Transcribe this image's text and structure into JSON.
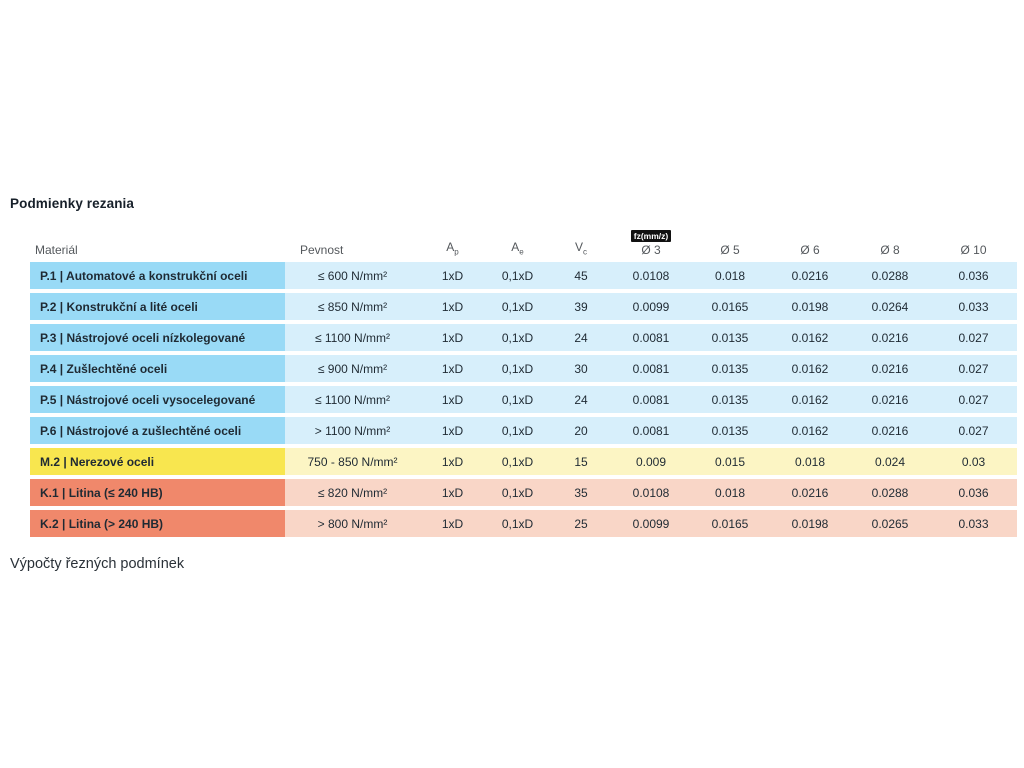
{
  "title": "Podmienky rezania",
  "footer_text": "Výpočty řezných podmínek",
  "table": {
    "fz_badge": "fz(mm/z)",
    "columns": [
      {
        "label": "Materiál"
      },
      {
        "label": "Pevnost"
      },
      {
        "label": "A",
        "sub": "p"
      },
      {
        "label": "A",
        "sub": "e"
      },
      {
        "label": "V",
        "sub": "c"
      },
      {
        "label": "Ø 3"
      },
      {
        "label": "Ø 5"
      },
      {
        "label": "Ø 6"
      },
      {
        "label": "Ø 8"
      },
      {
        "label": "Ø 10"
      }
    ],
    "rows": [
      {
        "group": "p",
        "material": "P.1 | Automatové a konstrukční oceli",
        "pevnost": "≤ 600 N/mm²",
        "ap": "1xD",
        "ae": "0,1xD",
        "vc": "45",
        "d3": "0.0108",
        "d5": "0.018",
        "d6": "0.0216",
        "d8": "0.0288",
        "d10": "0.036"
      },
      {
        "group": "p",
        "material": "P.2 | Konstrukční a lité oceli",
        "pevnost": "≤ 850 N/mm²",
        "ap": "1xD",
        "ae": "0,1xD",
        "vc": "39",
        "d3": "0.0099",
        "d5": "0.0165",
        "d6": "0.0198",
        "d8": "0.0264",
        "d10": "0.033"
      },
      {
        "group": "p",
        "material": "P.3 | Nástrojové oceli nízkolegované",
        "pevnost": "≤ 1100 N/mm²",
        "ap": "1xD",
        "ae": "0,1xD",
        "vc": "24",
        "d3": "0.0081",
        "d5": "0.0135",
        "d6": "0.0162",
        "d8": "0.0216",
        "d10": "0.027"
      },
      {
        "group": "p",
        "material": "P.4 | Zušlechtěné oceli",
        "pevnost": "≤ 900 N/mm²",
        "ap": "1xD",
        "ae": "0,1xD",
        "vc": "30",
        "d3": "0.0081",
        "d5": "0.0135",
        "d6": "0.0162",
        "d8": "0.0216",
        "d10": "0.027"
      },
      {
        "group": "p",
        "material": "P.5 | Nástrojové oceli vysocelegované",
        "pevnost": "≤ 1100 N/mm²",
        "ap": "1xD",
        "ae": "0,1xD",
        "vc": "24",
        "d3": "0.0081",
        "d5": "0.0135",
        "d6": "0.0162",
        "d8": "0.0216",
        "d10": "0.027"
      },
      {
        "group": "p",
        "material": "P.6 | Nástrojové a zušlechtěné oceli",
        "pevnost": "> 1100 N/mm²",
        "ap": "1xD",
        "ae": "0,1xD",
        "vc": "20",
        "d3": "0.0081",
        "d5": "0.0135",
        "d6": "0.0162",
        "d8": "0.0216",
        "d10": "0.027"
      },
      {
        "group": "m",
        "material": "M.2 | Nerezové oceli",
        "pevnost": "750 - 850 N/mm²",
        "ap": "1xD",
        "ae": "0,1xD",
        "vc": "15",
        "d3": "0.009",
        "d5": "0.015",
        "d6": "0.018",
        "d8": "0.024",
        "d10": "0.03"
      },
      {
        "group": "k",
        "material": "K.1 | Litina (≤ 240 HB)",
        "pevnost": "≤ 820 N/mm²",
        "ap": "1xD",
        "ae": "0,1xD",
        "vc": "35",
        "d3": "0.0108",
        "d5": "0.018",
        "d6": "0.0216",
        "d8": "0.0288",
        "d10": "0.036"
      },
      {
        "group": "k",
        "material": "K.2 | Litina (> 240 HB)",
        "pevnost": "> 800 N/mm²",
        "ap": "1xD",
        "ae": "0,1xD",
        "vc": "25",
        "d3": "0.0099",
        "d5": "0.0165",
        "d6": "0.0198",
        "d8": "0.0265",
        "d10": "0.033"
      }
    ]
  },
  "colors": {
    "p_mat": "#99DAF6",
    "p_cell": "#D7EFFB",
    "m_mat": "#F8E64F",
    "m_cell": "#FCF5C4",
    "k_mat": "#F0886B",
    "k_cell": "#F9D6C7",
    "badge_bg": "#111111",
    "badge_fg": "#FFFFFF",
    "text": "#1F2A33",
    "header_text": "#54585C"
  }
}
